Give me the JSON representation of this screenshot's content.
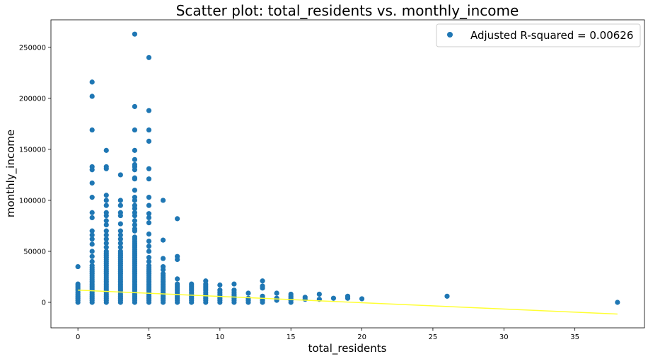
{
  "chart_data": {
    "type": "scatter",
    "title": "Scatter plot: total_residents vs. monthly_income",
    "xlabel": "total_residents",
    "ylabel": "monthly_income",
    "xlim": [
      -1.9,
      39.9
    ],
    "ylim": [
      -25000,
      277000
    ],
    "xticks": [
      0,
      5,
      10,
      15,
      20,
      25,
      30,
      35
    ],
    "yticks": [
      0,
      50000,
      100000,
      150000,
      200000,
      250000
    ],
    "grid": false,
    "legend": {
      "placement": "top-right",
      "entries": [
        "Adjusted R-squared = 0.00626"
      ]
    },
    "colors": {
      "points": "#1f77b4",
      "fit_line": "#ffff33"
    },
    "series": [
      {
        "name": "Adjusted R-squared = 0.00626",
        "kind": "scatter",
        "points": [
          [
            0,
            0
          ],
          [
            0,
            2000
          ],
          [
            0,
            4000
          ],
          [
            0,
            6000
          ],
          [
            0,
            8000
          ],
          [
            0,
            10000
          ],
          [
            0,
            12000
          ],
          [
            0,
            14000
          ],
          [
            0,
            16000
          ],
          [
            0,
            18000
          ],
          [
            0,
            35000
          ],
          [
            1,
            0
          ],
          [
            1,
            2000
          ],
          [
            1,
            4000
          ],
          [
            1,
            6000
          ],
          [
            1,
            8000
          ],
          [
            1,
            10000
          ],
          [
            1,
            12000
          ],
          [
            1,
            14000
          ],
          [
            1,
            16000
          ],
          [
            1,
            18000
          ],
          [
            1,
            20000
          ],
          [
            1,
            22000
          ],
          [
            1,
            24000
          ],
          [
            1,
            26000
          ],
          [
            1,
            28000
          ],
          [
            1,
            30000
          ],
          [
            1,
            32000
          ],
          [
            1,
            34000
          ],
          [
            1,
            36000
          ],
          [
            1,
            40000
          ],
          [
            1,
            45000
          ],
          [
            1,
            50000
          ],
          [
            1,
            57000
          ],
          [
            1,
            62000
          ],
          [
            1,
            66000
          ],
          [
            1,
            70000
          ],
          [
            1,
            83000
          ],
          [
            1,
            88000
          ],
          [
            1,
            103000
          ],
          [
            1,
            117000
          ],
          [
            1,
            130000
          ],
          [
            1,
            133000
          ],
          [
            1,
            169000
          ],
          [
            1,
            202000
          ],
          [
            1,
            216000
          ],
          [
            2,
            0
          ],
          [
            2,
            2000
          ],
          [
            2,
            4000
          ],
          [
            2,
            6000
          ],
          [
            2,
            8000
          ],
          [
            2,
            10000
          ],
          [
            2,
            12000
          ],
          [
            2,
            14000
          ],
          [
            2,
            16000
          ],
          [
            2,
            18000
          ],
          [
            2,
            20000
          ],
          [
            2,
            22000
          ],
          [
            2,
            24000
          ],
          [
            2,
            26000
          ],
          [
            2,
            28000
          ],
          [
            2,
            30000
          ],
          [
            2,
            32000
          ],
          [
            2,
            34000
          ],
          [
            2,
            36000
          ],
          [
            2,
            38000
          ],
          [
            2,
            40000
          ],
          [
            2,
            42000
          ],
          [
            2,
            44000
          ],
          [
            2,
            46000
          ],
          [
            2,
            48000
          ],
          [
            2,
            50000
          ],
          [
            2,
            54000
          ],
          [
            2,
            58000
          ],
          [
            2,
            62000
          ],
          [
            2,
            66000
          ],
          [
            2,
            70000
          ],
          [
            2,
            76000
          ],
          [
            2,
            80000
          ],
          [
            2,
            85000
          ],
          [
            2,
            88000
          ],
          [
            2,
            95000
          ],
          [
            2,
            100000
          ],
          [
            2,
            105000
          ],
          [
            2,
            131000
          ],
          [
            2,
            133000
          ],
          [
            2,
            149000
          ],
          [
            3,
            0
          ],
          [
            3,
            2000
          ],
          [
            3,
            4000
          ],
          [
            3,
            6000
          ],
          [
            3,
            8000
          ],
          [
            3,
            10000
          ],
          [
            3,
            12000
          ],
          [
            3,
            14000
          ],
          [
            3,
            16000
          ],
          [
            3,
            18000
          ],
          [
            3,
            20000
          ],
          [
            3,
            22000
          ],
          [
            3,
            24000
          ],
          [
            3,
            26000
          ],
          [
            3,
            28000
          ],
          [
            3,
            30000
          ],
          [
            3,
            32000
          ],
          [
            3,
            34000
          ],
          [
            3,
            36000
          ],
          [
            3,
            38000
          ],
          [
            3,
            40000
          ],
          [
            3,
            42000
          ],
          [
            3,
            44000
          ],
          [
            3,
            46000
          ],
          [
            3,
            48000
          ],
          [
            3,
            50000
          ],
          [
            3,
            54000
          ],
          [
            3,
            58000
          ],
          [
            3,
            62000
          ],
          [
            3,
            66000
          ],
          [
            3,
            70000
          ],
          [
            3,
            77000
          ],
          [
            3,
            85000
          ],
          [
            3,
            88000
          ],
          [
            3,
            95000
          ],
          [
            3,
            100000
          ],
          [
            3,
            125000
          ],
          [
            4,
            0
          ],
          [
            4,
            2000
          ],
          [
            4,
            4000
          ],
          [
            4,
            6000
          ],
          [
            4,
            8000
          ],
          [
            4,
            10000
          ],
          [
            4,
            12000
          ],
          [
            4,
            14000
          ],
          [
            4,
            16000
          ],
          [
            4,
            18000
          ],
          [
            4,
            20000
          ],
          [
            4,
            22000
          ],
          [
            4,
            24000
          ],
          [
            4,
            26000
          ],
          [
            4,
            28000
          ],
          [
            4,
            30000
          ],
          [
            4,
            32000
          ],
          [
            4,
            34000
          ],
          [
            4,
            36000
          ],
          [
            4,
            38000
          ],
          [
            4,
            40000
          ],
          [
            4,
            42000
          ],
          [
            4,
            44000
          ],
          [
            4,
            46000
          ],
          [
            4,
            48000
          ],
          [
            4,
            50000
          ],
          [
            4,
            52000
          ],
          [
            4,
            54000
          ],
          [
            4,
            56000
          ],
          [
            4,
            58000
          ],
          [
            4,
            60000
          ],
          [
            4,
            62000
          ],
          [
            4,
            64000
          ],
          [
            4,
            70000
          ],
          [
            4,
            72000
          ],
          [
            4,
            76000
          ],
          [
            4,
            80000
          ],
          [
            4,
            85000
          ],
          [
            4,
            88000
          ],
          [
            4,
            92000
          ],
          [
            4,
            95000
          ],
          [
            4,
            100000
          ],
          [
            4,
            103000
          ],
          [
            4,
            110000
          ],
          [
            4,
            121000
          ],
          [
            4,
            122000
          ],
          [
            4,
            130000
          ],
          [
            4,
            133000
          ],
          [
            4,
            135000
          ],
          [
            4,
            140000
          ],
          [
            4,
            149000
          ],
          [
            4,
            169000
          ],
          [
            4,
            192000
          ],
          [
            4,
            263000
          ],
          [
            5,
            0
          ],
          [
            5,
            2000
          ],
          [
            5,
            4000
          ],
          [
            5,
            6000
          ],
          [
            5,
            8000
          ],
          [
            5,
            10000
          ],
          [
            5,
            12000
          ],
          [
            5,
            14000
          ],
          [
            5,
            16000
          ],
          [
            5,
            18000
          ],
          [
            5,
            20000
          ],
          [
            5,
            22000
          ],
          [
            5,
            24000
          ],
          [
            5,
            26000
          ],
          [
            5,
            28000
          ],
          [
            5,
            30000
          ],
          [
            5,
            32000
          ],
          [
            5,
            34000
          ],
          [
            5,
            36000
          ],
          [
            5,
            40000
          ],
          [
            5,
            44000
          ],
          [
            5,
            50000
          ],
          [
            5,
            55000
          ],
          [
            5,
            60000
          ],
          [
            5,
            67000
          ],
          [
            5,
            78000
          ],
          [
            5,
            83000
          ],
          [
            5,
            87000
          ],
          [
            5,
            95000
          ],
          [
            5,
            103000
          ],
          [
            5,
            121000
          ],
          [
            5,
            131000
          ],
          [
            5,
            158000
          ],
          [
            5,
            169000
          ],
          [
            5,
            188000
          ],
          [
            5,
            240000
          ],
          [
            6,
            0
          ],
          [
            6,
            2000
          ],
          [
            6,
            4000
          ],
          [
            6,
            6000
          ],
          [
            6,
            8000
          ],
          [
            6,
            10000
          ],
          [
            6,
            12000
          ],
          [
            6,
            14000
          ],
          [
            6,
            16000
          ],
          [
            6,
            18000
          ],
          [
            6,
            20000
          ],
          [
            6,
            22000
          ],
          [
            6,
            24000
          ],
          [
            6,
            26000
          ],
          [
            6,
            28000
          ],
          [
            6,
            32000
          ],
          [
            6,
            35000
          ],
          [
            6,
            43000
          ],
          [
            6,
            61000
          ],
          [
            6,
            100000
          ],
          [
            7,
            0
          ],
          [
            7,
            2000
          ],
          [
            7,
            4000
          ],
          [
            7,
            6000
          ],
          [
            7,
            8000
          ],
          [
            7,
            10000
          ],
          [
            7,
            12000
          ],
          [
            7,
            14000
          ],
          [
            7,
            16000
          ],
          [
            7,
            18000
          ],
          [
            7,
            23000
          ],
          [
            7,
            42000
          ],
          [
            7,
            45000
          ],
          [
            7,
            82000
          ],
          [
            8,
            0
          ],
          [
            8,
            2000
          ],
          [
            8,
            4000
          ],
          [
            8,
            6000
          ],
          [
            8,
            8000
          ],
          [
            8,
            10000
          ],
          [
            8,
            12000
          ],
          [
            8,
            14000
          ],
          [
            8,
            16000
          ],
          [
            8,
            18000
          ],
          [
            9,
            0
          ],
          [
            9,
            2000
          ],
          [
            9,
            4000
          ],
          [
            9,
            6000
          ],
          [
            9,
            8000
          ],
          [
            9,
            10000
          ],
          [
            9,
            12000
          ],
          [
            9,
            14000
          ],
          [
            9,
            16000
          ],
          [
            9,
            18000
          ],
          [
            9,
            21000
          ],
          [
            10,
            0
          ],
          [
            10,
            2000
          ],
          [
            10,
            4000
          ],
          [
            10,
            6000
          ],
          [
            10,
            8000
          ],
          [
            10,
            10000
          ],
          [
            10,
            12000
          ],
          [
            10,
            17000
          ],
          [
            11,
            0
          ],
          [
            11,
            2000
          ],
          [
            11,
            4000
          ],
          [
            11,
            6000
          ],
          [
            11,
            8000
          ],
          [
            11,
            10000
          ],
          [
            11,
            12000
          ],
          [
            11,
            18000
          ],
          [
            12,
            0
          ],
          [
            12,
            2000
          ],
          [
            12,
            4000
          ],
          [
            12,
            9000
          ],
          [
            13,
            0
          ],
          [
            13,
            2000
          ],
          [
            13,
            4000
          ],
          [
            13,
            6000
          ],
          [
            13,
            14000
          ],
          [
            13,
            16000
          ],
          [
            13,
            21000
          ],
          [
            14,
            2000
          ],
          [
            14,
            4000
          ],
          [
            14,
            9000
          ],
          [
            15,
            0
          ],
          [
            15,
            2000
          ],
          [
            15,
            4000
          ],
          [
            15,
            6000
          ],
          [
            15,
            8000
          ],
          [
            16,
            3000
          ],
          [
            16,
            5000
          ],
          [
            17,
            3000
          ],
          [
            17,
            8000
          ],
          [
            18,
            4000
          ],
          [
            19,
            4000
          ],
          [
            19,
            6000
          ],
          [
            20,
            3500
          ],
          [
            26,
            6000
          ],
          [
            38,
            0
          ]
        ]
      },
      {
        "kind": "line",
        "points": [
          [
            0,
            12000
          ],
          [
            38,
            -11500
          ]
        ]
      }
    ]
  }
}
